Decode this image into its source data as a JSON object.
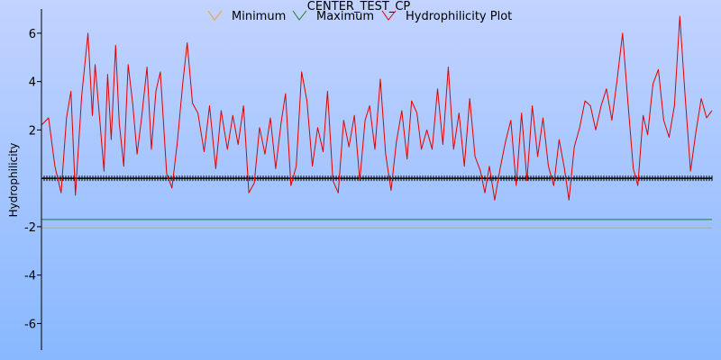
{
  "chart_data": {
    "type": "line",
    "title": "CENTER_TEST_CP",
    "xlabel": "",
    "ylabel": "Hydrophilicity",
    "ylim": [
      -7.1,
      7.0
    ],
    "xlim": [
      0,
      750
    ],
    "yticks": [
      -6,
      -4,
      -2,
      2,
      4,
      6
    ],
    "yticks_labels": [
      "-6",
      "-4",
      "-2",
      "2",
      "4",
      "6"
    ],
    "grid": false,
    "legend_position": "top",
    "colors": {
      "background_top": "#c2d3ff",
      "background_bottom": "#88b8ff",
      "minimum": "#f0a030",
      "maximum": "#208020",
      "hydrophilicity": "#e00000",
      "zero_line": "#000000"
    },
    "series": [
      {
        "name": "Minimum",
        "constant": -2.05
      },
      {
        "name": "Maximum",
        "constant": -1.7
      },
      {
        "name": "Hydrophilicity Plot",
        "x": [
          0,
          8,
          15,
          22,
          28,
          33,
          38,
          45,
          52,
          57,
          60,
          65,
          70,
          74,
          78,
          83,
          87,
          92,
          97,
          102,
          107,
          112,
          118,
          123,
          128,
          133,
          140,
          146,
          152,
          158,
          163,
          169,
          175,
          182,
          188,
          195,
          201,
          208,
          214,
          220,
          226,
          232,
          238,
          244,
          250,
          256,
          262,
          268,
          273,
          279,
          285,
          291,
          297,
          303,
          309,
          315,
          320,
          326,
          332,
          338,
          344,
          350,
          356,
          362,
          367,
          373,
          379,
          385,
          391,
          397,
          403,
          409,
          414,
          420,
          425,
          431,
          437,
          443,
          449,
          455,
          461,
          467,
          473,
          479,
          485,
          491,
          496,
          501,
          507,
          513,
          519,
          525,
          531,
          537,
          543,
          549,
          555,
          561,
          567,
          573,
          579,
          585,
          590,
          596,
          602,
          608,
          614,
          620,
          626,
          632,
          638,
          644,
          650,
          656,
          662,
          667,
          673,
          678,
          684,
          690,
          696,
          702,
          708,
          714,
          720,
          726,
          732,
          738,
          744,
          750
        ],
        "values": [
          2.2,
          2.5,
          0.5,
          -0.6,
          2.5,
          3.6,
          -0.7,
          3.4,
          6.0,
          2.6,
          4.7,
          2.5,
          0.3,
          4.3,
          1.6,
          5.5,
          2.3,
          0.5,
          4.7,
          3.1,
          1.0,
          2.5,
          4.6,
          1.2,
          3.6,
          4.4,
          0.2,
          -0.4,
          1.5,
          3.9,
          5.6,
          3.1,
          2.7,
          1.1,
          3.0,
          0.4,
          2.8,
          1.2,
          2.6,
          1.4,
          3.0,
          -0.6,
          -0.2,
          2.1,
          1.0,
          2.5,
          0.4,
          2.3,
          3.5,
          -0.3,
          0.5,
          4.4,
          3.2,
          0.5,
          2.1,
          1.1,
          3.6,
          -0.1,
          -0.6,
          2.4,
          1.3,
          2.6,
          -0.1,
          2.4,
          3.0,
          1.2,
          4.1,
          1.0,
          -0.5,
          1.5,
          2.8,
          0.8,
          3.2,
          2.7,
          1.2,
          2.0,
          1.2,
          3.7,
          1.4,
          4.6,
          1.2,
          2.7,
          0.5,
          3.3,
          0.9,
          0.3,
          -0.6,
          0.5,
          -0.9,
          0.4,
          1.5,
          2.4,
          -0.3,
          2.7,
          -0.1,
          3.0,
          0.9,
          2.5,
          0.5,
          -0.3,
          1.6,
          0.4,
          -0.9,
          1.3,
          2.1,
          3.2,
          3.0,
          2.0,
          3.0,
          3.7,
          2.4,
          4.1,
          6.0,
          3.1,
          0.4,
          -0.3,
          2.6,
          1.8,
          3.9,
          4.5,
          2.4,
          1.7,
          3.0,
          6.7,
          3.4,
          0.3,
          1.9,
          3.3,
          2.5,
          2.8
        ]
      }
    ]
  },
  "legend": {
    "items": [
      "Minimum",
      "Maximum",
      "Hydrophilicity Plot"
    ]
  }
}
